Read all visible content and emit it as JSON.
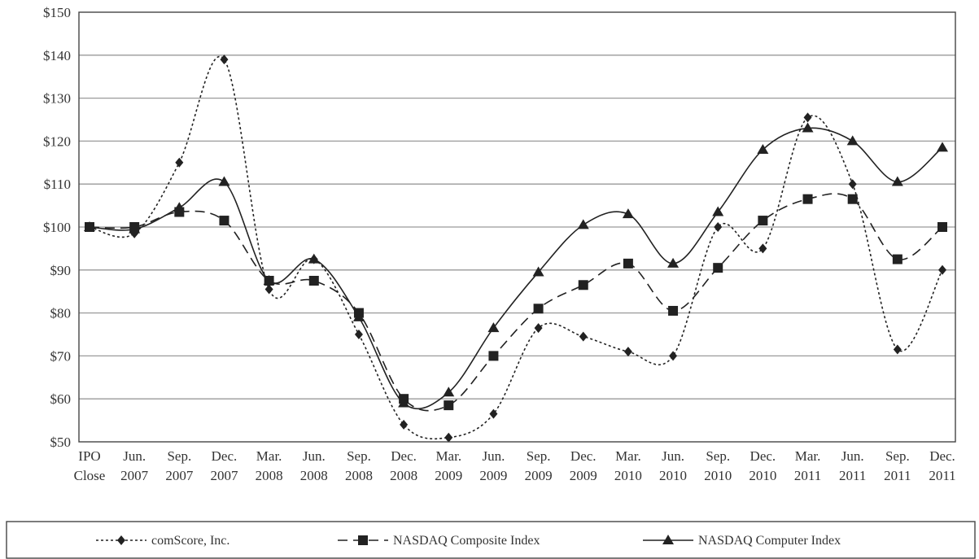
{
  "chart_data": {
    "type": "line",
    "categories": [
      [
        "IPO",
        "Close"
      ],
      [
        "Jun.",
        "2007"
      ],
      [
        "Sep.",
        "2007"
      ],
      [
        "Dec.",
        "2007"
      ],
      [
        "Mar.",
        "2008"
      ],
      [
        "Jun.",
        "2008"
      ],
      [
        "Sep.",
        "2008"
      ],
      [
        "Dec.",
        "2008"
      ],
      [
        "Mar.",
        "2009"
      ],
      [
        "Jun.",
        "2009"
      ],
      [
        "Sep.",
        "2009"
      ],
      [
        "Dec.",
        "2009"
      ],
      [
        "Mar.",
        "2010"
      ],
      [
        "Jun.",
        "2010"
      ],
      [
        "Sep.",
        "2010"
      ],
      [
        "Dec.",
        "2010"
      ],
      [
        "Mar.",
        "2011"
      ],
      [
        "Jun.",
        "2011"
      ],
      [
        "Sep.",
        "2011"
      ],
      [
        "Dec.",
        "2011"
      ]
    ],
    "yticks": [
      "$50",
      "$60",
      "$70",
      "$80",
      "$90",
      "$100",
      "$110",
      "$120",
      "$130",
      "$140",
      "$150"
    ],
    "ylim": [
      50,
      150
    ],
    "grid": true,
    "legend_position": "bottom",
    "series": [
      {
        "name": "comScore, Inc.",
        "marker": "diamond",
        "line": "dotted",
        "values": [
          100,
          98.5,
          115,
          139,
          85.5,
          92.5,
          75,
          54,
          51,
          56.5,
          76.5,
          74.5,
          71,
          70,
          100,
          95,
          125.5,
          110,
          71.5,
          90
        ]
      },
      {
        "name": "NASDAQ Composite Index",
        "marker": "square",
        "line": "dashed",
        "values": [
          100,
          100,
          103.5,
          101.5,
          87.5,
          87.5,
          80,
          60,
          58.5,
          70,
          81,
          86.5,
          91.5,
          80.5,
          90.5,
          101.5,
          106.5,
          106.5,
          92.5,
          100
        ]
      },
      {
        "name": "NASDAQ Computer Index",
        "marker": "triangle",
        "line": "solid",
        "values": [
          100,
          99.5,
          104.5,
          110.5,
          87.5,
          92.5,
          79,
          59,
          61.5,
          76.5,
          89.5,
          100.5,
          103,
          91.5,
          103.5,
          118,
          123,
          120,
          110.5,
          118.5
        ]
      }
    ]
  }
}
